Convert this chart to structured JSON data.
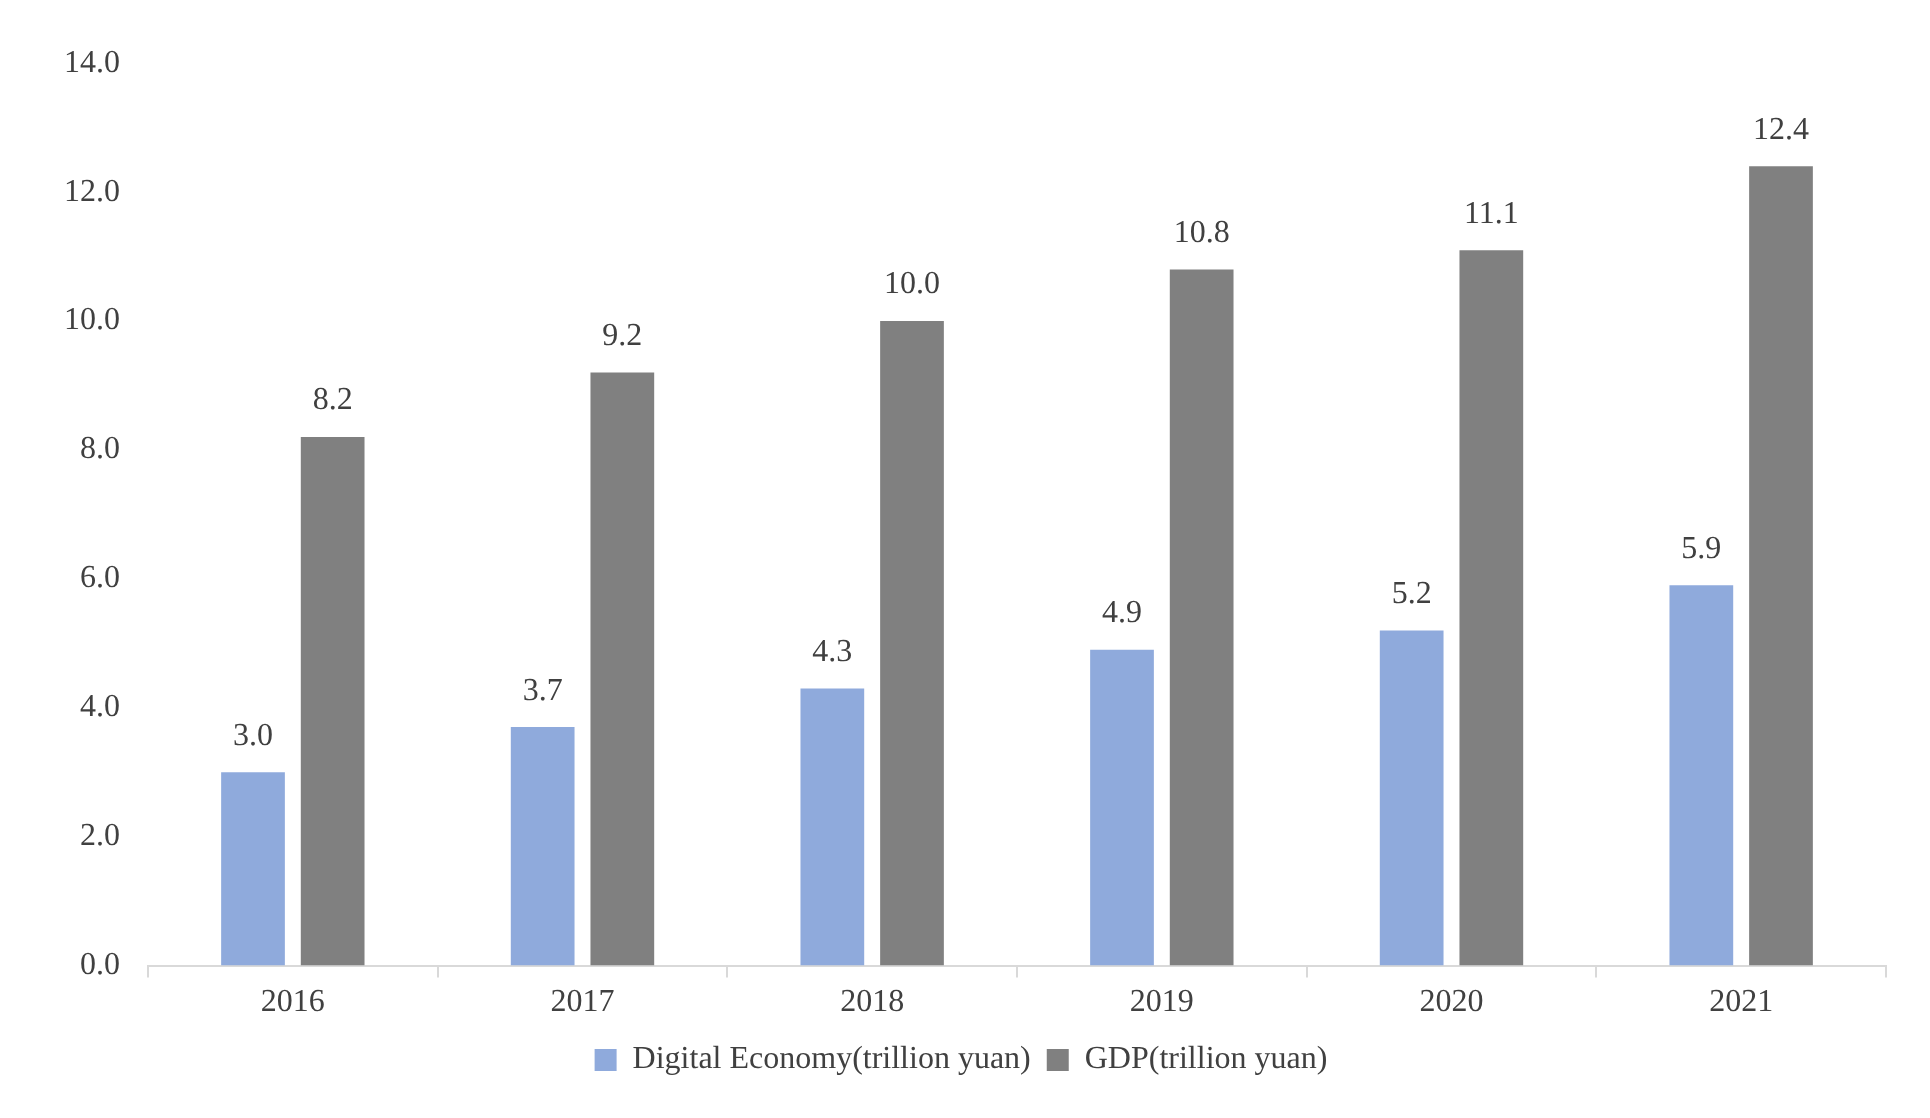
{
  "chart_data": {
    "type": "bar",
    "categories": [
      "2016",
      "2017",
      "2018",
      "2019",
      "2020",
      "2021"
    ],
    "series": [
      {
        "name": "Digital Economy(trillion yuan)",
        "color": "#8faadc",
        "values": [
          3.0,
          3.7,
          4.3,
          4.9,
          5.2,
          5.9
        ],
        "value_labels": [
          "3.0",
          "3.7",
          "4.3",
          "4.9",
          "5.2",
          "5.9"
        ]
      },
      {
        "name": "GDP(trillion yuan)",
        "color": "#808080",
        "values": [
          8.2,
          9.2,
          10.0,
          10.8,
          11.1,
          12.4
        ],
        "value_labels": [
          "8.2",
          "9.2",
          "10.0",
          "10.8",
          "11.1",
          "12.4"
        ]
      }
    ],
    "ylim": [
      0,
      14
    ],
    "yticks": [
      {
        "value": 0,
        "label": "0.0"
      },
      {
        "value": 2,
        "label": "2.0"
      },
      {
        "value": 4,
        "label": "4.0"
      },
      {
        "value": 6,
        "label": "6.0"
      },
      {
        "value": 8,
        "label": "8.0"
      },
      {
        "value": 10,
        "label": "10.0"
      },
      {
        "value": 12,
        "label": "12.0"
      },
      {
        "value": 14,
        "label": "14.0"
      }
    ],
    "grid": false,
    "legend": "bottom"
  }
}
